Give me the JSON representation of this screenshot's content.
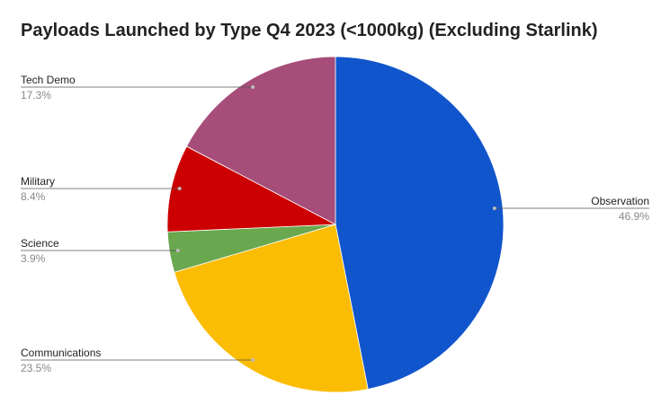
{
  "chart_data": {
    "type": "pie",
    "title": "Payloads Launched by Type Q4 2023 (<1000kg) (Excluding Starlink)",
    "slices": [
      {
        "label": "Observation",
        "percent_label": "46.9%",
        "value": 46.9,
        "color": "#1155cc"
      },
      {
        "label": "Communications",
        "percent_label": "23.5%",
        "value": 23.5,
        "color": "#fbbc04"
      },
      {
        "label": "Science",
        "percent_label": "3.9%",
        "value": 3.9,
        "color": "#6aa84f"
      },
      {
        "label": "Military",
        "percent_label": "8.4%",
        "value": 8.4,
        "color": "#cc0000"
      },
      {
        "label": "Tech Demo",
        "percent_label": "17.3%",
        "value": 17.3,
        "color": "#a64d79"
      }
    ],
    "start_angle": "top",
    "direction": "clockwise",
    "legend": "none"
  }
}
